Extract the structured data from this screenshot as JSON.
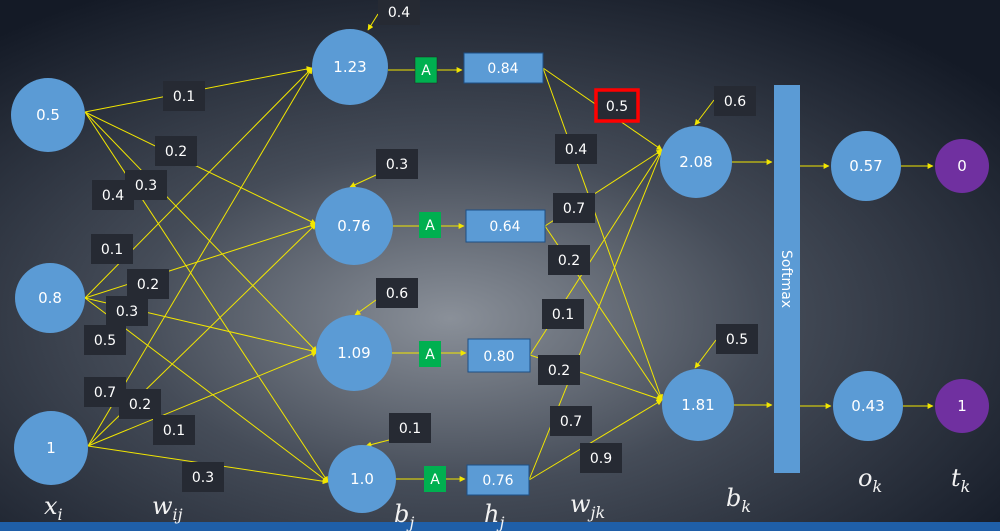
{
  "colors": {
    "node": "#5b9bd5",
    "target": "#7030a0",
    "activation": "#00b050",
    "weight_box": "#262a33",
    "edge": "#f2e600",
    "highlight": "#ff0000"
  },
  "inputs": [
    "0.5",
    "0.8",
    "1"
  ],
  "hidden": {
    "pre": [
      "1.23",
      "0.76",
      "1.09",
      "1.0"
    ],
    "bias": [
      "0.4",
      "0.3",
      "0.6",
      "0.1"
    ],
    "activation_label": "A",
    "post": [
      "0.84",
      "0.64",
      "0.80",
      "0.76"
    ]
  },
  "input_weights": [
    "0.1",
    "0.2",
    "0.4",
    "0.3",
    "0.1",
    "0.2",
    "0.3",
    "0.5",
    "0.7",
    "0.2",
    "0.1",
    "0.3"
  ],
  "output_weights": [
    "0.5",
    "0.4",
    "0.7",
    "0.2",
    "0.1",
    "0.2",
    "0.7",
    "0.9"
  ],
  "output_nodes": {
    "pre": [
      "2.08",
      "1.81"
    ],
    "bias": [
      "0.6",
      "0.5"
    ]
  },
  "softmax_label": "Softmax",
  "outputs": [
    "0.57",
    "0.43"
  ],
  "targets": [
    "0",
    "1"
  ],
  "labels": {
    "x": {
      "main": "x",
      "sub": "i"
    },
    "wij": {
      "main": "w",
      "sub": "ij"
    },
    "bj": {
      "main": "b",
      "sub": "j"
    },
    "hj": {
      "main": "h",
      "sub": "j"
    },
    "wjk": {
      "main": "w",
      "sub": "jk"
    },
    "bk": {
      "main": "b",
      "sub": "k"
    },
    "ok": {
      "main": "o",
      "sub": "k"
    },
    "tk": {
      "main": "t",
      "sub": "k"
    }
  }
}
